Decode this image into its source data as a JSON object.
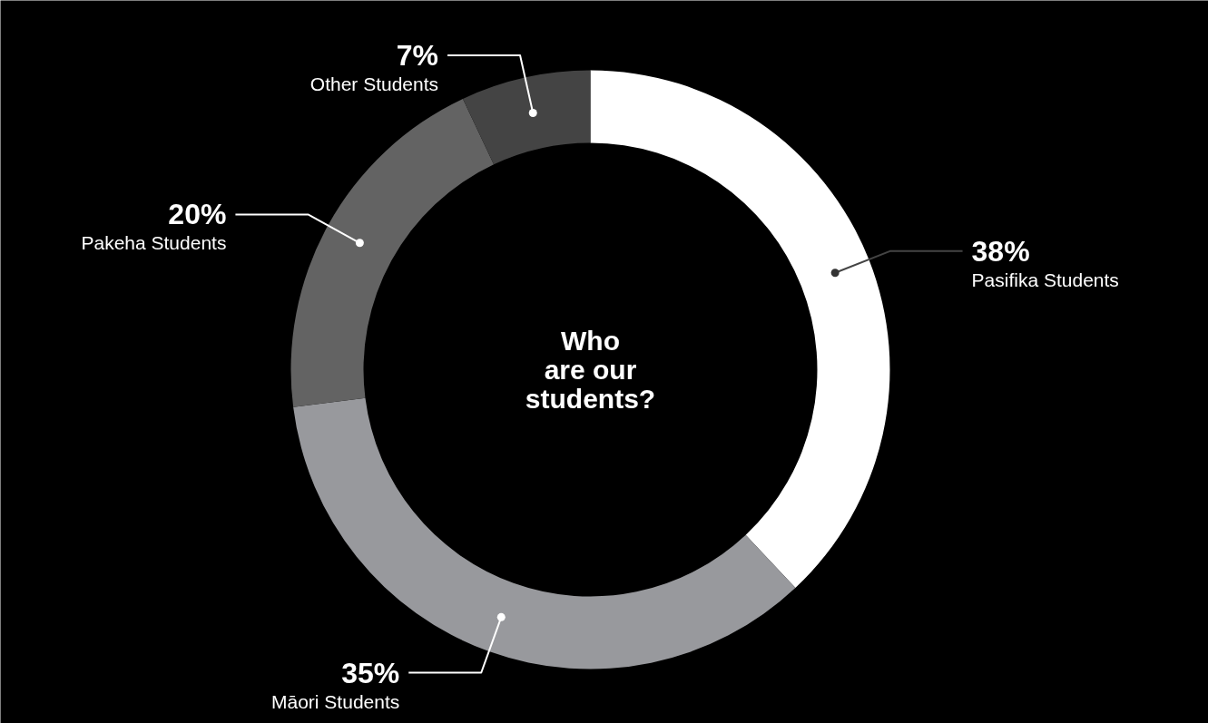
{
  "chart_data": {
    "type": "donut",
    "title": "Who are our students?",
    "categories": [
      "Pasifika Students",
      "Māori Students",
      "Pakeha Students",
      "Other Students"
    ],
    "values": [
      38,
      35,
      20,
      7
    ],
    "colors": [
      "#ffffff",
      "#98999d",
      "#636363",
      "#444444"
    ],
    "value_labels": [
      "38%",
      "35%",
      "20%",
      "7%"
    ]
  }
}
